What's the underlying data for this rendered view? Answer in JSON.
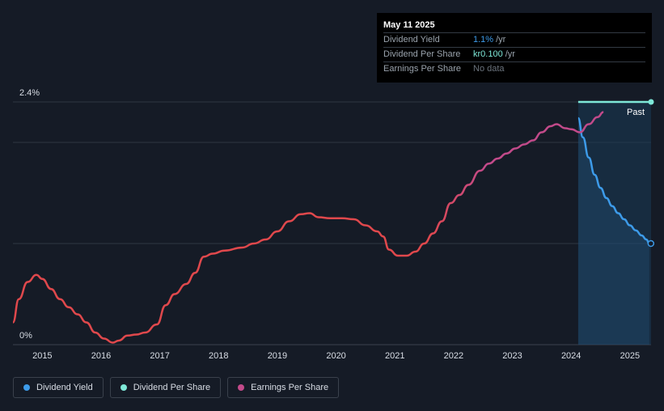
{
  "tooltip": {
    "date": "May 11 2025",
    "rows": [
      {
        "label": "Dividend Yield",
        "value": "1.1%",
        "unit": "/yr"
      },
      {
        "label": "Dividend Per Share",
        "value": "kr0.100",
        "unit": "/yr"
      },
      {
        "label": "Earnings Per Share",
        "value": "No data"
      }
    ]
  },
  "colors": {
    "background": "#151b26",
    "dividend_yield": "#3d9be9",
    "dividend_per_share": "#7ee8d8",
    "earnings_per_share_past": "#e0484c",
    "earnings_per_share_recent": "#c24a8a",
    "forecast_band": "#1a3a55"
  },
  "legend": [
    {
      "label": "Dividend Yield",
      "color": "#3d9be9",
      "icon": "dot-icon"
    },
    {
      "label": "Dividend Per Share",
      "color": "#7ee8d8",
      "icon": "dot-icon"
    },
    {
      "label": "Earnings Per Share",
      "color": "#c24a8a",
      "icon": "dot-icon"
    }
  ],
  "chart_data": {
    "type": "line",
    "y_tick_labels": [
      "2.4%",
      "0%"
    ],
    "x_tick_labels": [
      "2015",
      "2016",
      "2017",
      "2018",
      "2019",
      "2020",
      "2021",
      "2022",
      "2023",
      "2024",
      "2025"
    ],
    "annotation": "Past",
    "ylim": [
      0,
      2.4
    ],
    "xlim": [
      2014.5,
      2025.36
    ],
    "grid": "horizontal",
    "series": [
      {
        "name": "Dividend Yield",
        "unit": "%",
        "points": [
          [
            2024.12,
            2.24
          ],
          [
            2024.2,
            2.05
          ],
          [
            2024.3,
            1.85
          ],
          [
            2024.4,
            1.68
          ],
          [
            2024.5,
            1.55
          ],
          [
            2024.6,
            1.45
          ],
          [
            2024.7,
            1.37
          ],
          [
            2024.8,
            1.3
          ],
          [
            2024.9,
            1.24
          ],
          [
            2025.0,
            1.18
          ],
          [
            2025.1,
            1.13
          ],
          [
            2025.2,
            1.08
          ],
          [
            2025.28,
            1.04
          ],
          [
            2025.33,
            1.0
          ]
        ]
      },
      {
        "name": "Dividend Per Share",
        "unit": "kr",
        "points": [
          [
            2024.12,
            0.1
          ],
          [
            2025.36,
            0.1
          ]
        ]
      },
      {
        "name": "Earnings Per Share",
        "points": [
          [
            2014.5,
            0.22
          ],
          [
            2014.6,
            0.45
          ],
          [
            2014.75,
            0.62
          ],
          [
            2014.9,
            0.69
          ],
          [
            2015.0,
            0.65
          ],
          [
            2015.15,
            0.55
          ],
          [
            2015.3,
            0.45
          ],
          [
            2015.45,
            0.37
          ],
          [
            2015.6,
            0.3
          ],
          [
            2015.75,
            0.22
          ],
          [
            2015.9,
            0.12
          ],
          [
            2016.05,
            0.06
          ],
          [
            2016.2,
            0.02
          ],
          [
            2016.3,
            0.04
          ],
          [
            2016.45,
            0.09
          ],
          [
            2016.6,
            0.1
          ],
          [
            2016.75,
            0.12
          ],
          [
            2016.95,
            0.2
          ],
          [
            2017.1,
            0.39
          ],
          [
            2017.25,
            0.5
          ],
          [
            2017.45,
            0.6
          ],
          [
            2017.6,
            0.71
          ],
          [
            2017.75,
            0.87
          ],
          [
            2017.9,
            0.9
          ],
          [
            2018.1,
            0.93
          ],
          [
            2018.4,
            0.96
          ],
          [
            2018.6,
            1.0
          ],
          [
            2018.8,
            1.04
          ],
          [
            2019.0,
            1.12
          ],
          [
            2019.2,
            1.22
          ],
          [
            2019.4,
            1.29
          ],
          [
            2019.55,
            1.3
          ],
          [
            2019.7,
            1.26
          ],
          [
            2019.9,
            1.25
          ],
          [
            2020.1,
            1.25
          ],
          [
            2020.3,
            1.24
          ],
          [
            2020.5,
            1.18
          ],
          [
            2020.7,
            1.12
          ],
          [
            2020.8,
            1.07
          ],
          [
            2020.9,
            0.94
          ],
          [
            2021.05,
            0.88
          ],
          [
            2021.2,
            0.88
          ],
          [
            2021.35,
            0.92
          ],
          [
            2021.5,
            1.0
          ],
          [
            2021.65,
            1.1
          ],
          [
            2021.8,
            1.22
          ],
          [
            2021.95,
            1.4
          ],
          [
            2022.1,
            1.48
          ],
          [
            2022.25,
            1.58
          ],
          [
            2022.45,
            1.72
          ],
          [
            2022.6,
            1.79
          ],
          [
            2022.75,
            1.84
          ],
          [
            2022.9,
            1.89
          ],
          [
            2023.05,
            1.94
          ],
          [
            2023.2,
            1.98
          ],
          [
            2023.35,
            2.02
          ],
          [
            2023.5,
            2.1
          ],
          [
            2023.65,
            2.16
          ],
          [
            2023.75,
            2.18
          ],
          [
            2023.9,
            2.14
          ],
          [
            2024.0,
            2.13
          ],
          [
            2024.15,
            2.1
          ],
          [
            2024.3,
            2.18
          ],
          [
            2024.45,
            2.25
          ],
          [
            2024.55,
            2.3
          ]
        ]
      }
    ]
  }
}
